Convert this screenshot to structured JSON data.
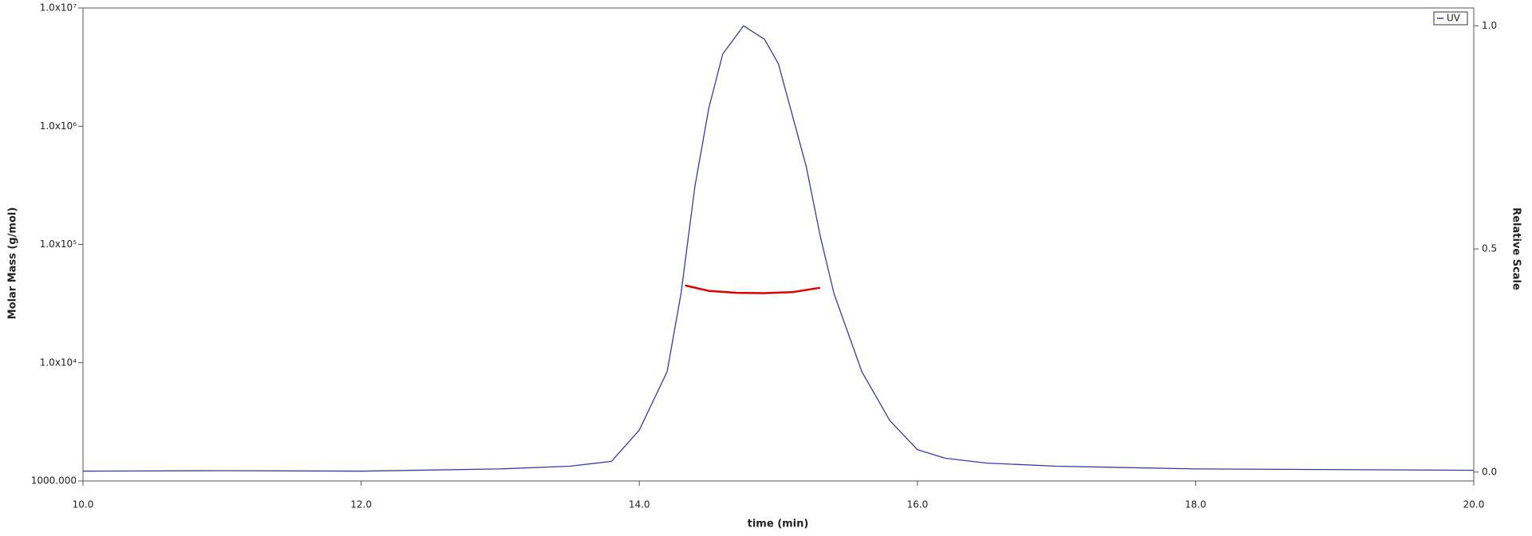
{
  "chart_data": {
    "type": "line",
    "xlabel": "time (min)",
    "ylabel": "Molar Mass (g/mol)",
    "y2label": "Relative Scale",
    "xlim": [
      10,
      20
    ],
    "xticks": [
      {
        "value": 10,
        "label": "10.0"
      },
      {
        "value": 12,
        "label": "12.0"
      },
      {
        "value": 14,
        "label": "14.0"
      },
      {
        "value": 16,
        "label": "16.0"
      },
      {
        "value": 18,
        "label": "18.0"
      },
      {
        "value": 20,
        "label": "20.0"
      }
    ],
    "yscale": "log",
    "ylim": [
      1000,
      10000000
    ],
    "yticks": [
      {
        "value": 1000,
        "label": "1000.000"
      },
      {
        "value": 10000,
        "label": "1.0x10⁴"
      },
      {
        "value": 100000,
        "label": "1.0x10⁵"
      },
      {
        "value": 1000000,
        "label": "1.0x10⁶"
      },
      {
        "value": 10000000,
        "label": "1.0x10⁷"
      }
    ],
    "y2lim": [
      -0.02,
      1.04
    ],
    "y2ticks": [
      {
        "value": 0,
        "label": "0.0"
      },
      {
        "value": 0.5,
        "label": "0.5"
      },
      {
        "value": 1,
        "label": "1.0"
      }
    ],
    "legend": "upper right",
    "series": [
      {
        "name": "UV",
        "color": "#3a3aa8",
        "axis": "y2",
        "x": [
          10,
          11,
          12,
          13,
          13.5,
          13.8,
          14.0,
          14.2,
          14.3,
          14.4,
          14.5,
          14.6,
          14.75,
          14.9,
          15.0,
          15.2,
          15.3,
          15.4,
          15.6,
          15.8,
          16.0,
          16.2,
          16.5,
          17,
          18,
          20
        ],
        "values": [
          0.002,
          0.003,
          0.002,
          0.007,
          0.013,
          0.024,
          0.094,
          0.225,
          0.4,
          0.64,
          0.816,
          0.937,
          1.0,
          0.97,
          0.915,
          0.685,
          0.53,
          0.4,
          0.225,
          0.116,
          0.05,
          0.031,
          0.02,
          0.013,
          0.007,
          0.004
        ]
      },
      {
        "color": "#e00000",
        "x": [
          14.33,
          14.5,
          14.7,
          14.9,
          15.1,
          15.3
        ],
        "values": [
          45000,
          40500,
          39000,
          38800,
          39500,
          43000
        ]
      }
    ]
  }
}
